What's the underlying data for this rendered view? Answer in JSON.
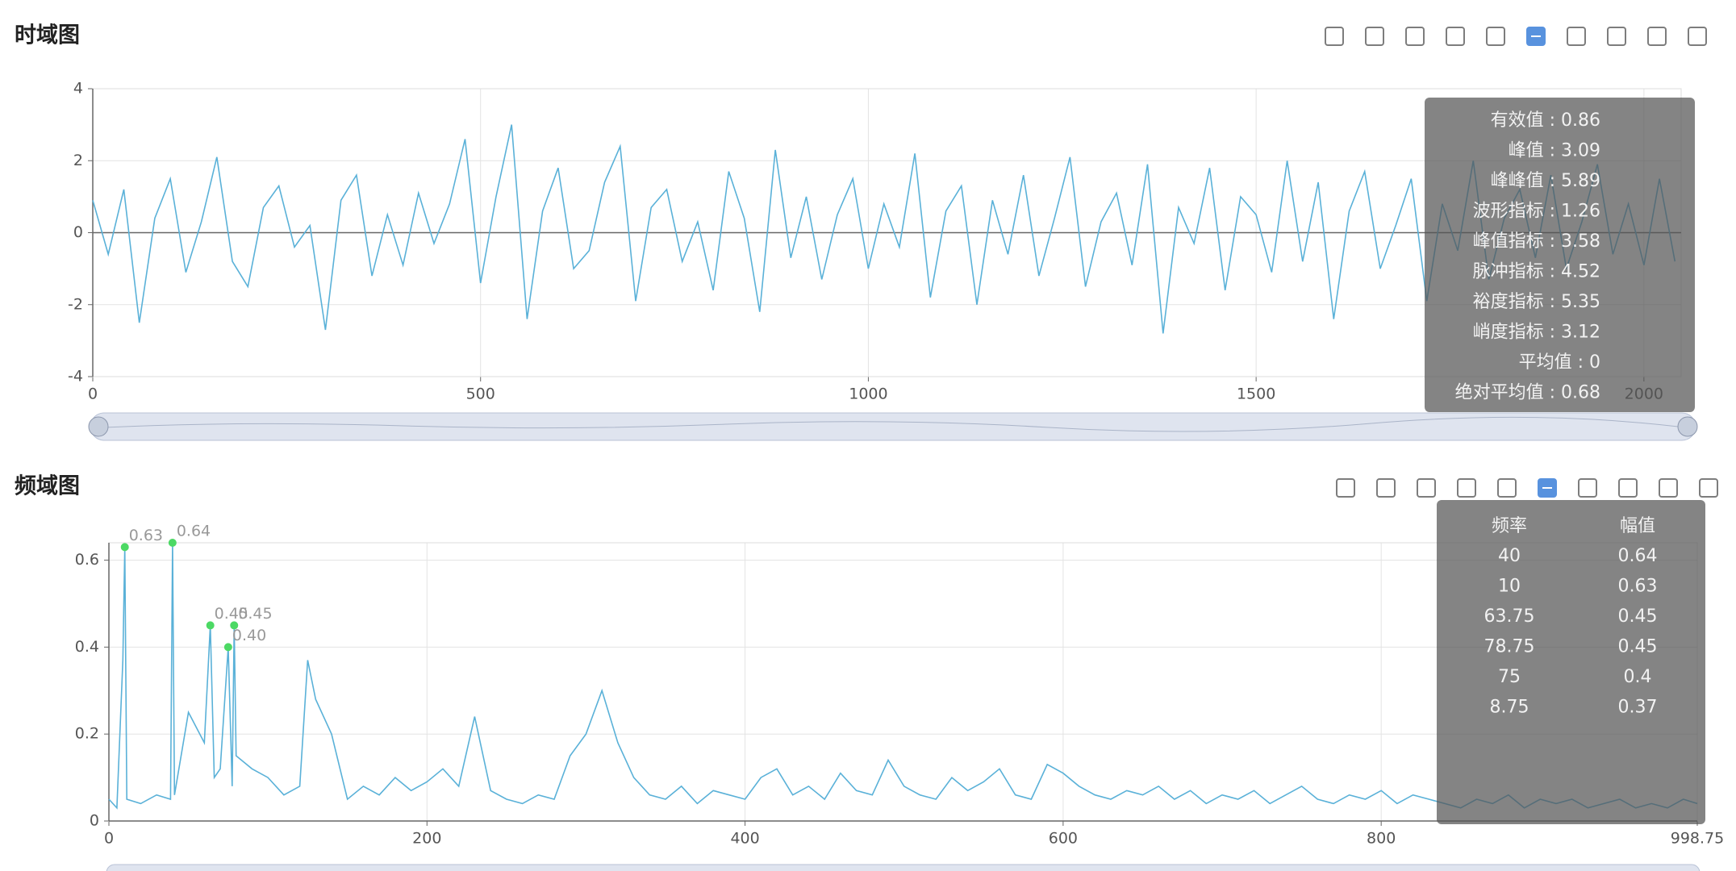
{
  "chart_data": [
    {
      "type": "line",
      "title": "时域图",
      "x": [
        0,
        20,
        40,
        60,
        80,
        100,
        120,
        140,
        160,
        180,
        200,
        220,
        240,
        260,
        280,
        300,
        320,
        340,
        360,
        380,
        400,
        420,
        440,
        460,
        480,
        500,
        520,
        540,
        560,
        580,
        600,
        620,
        640,
        660,
        680,
        700,
        720,
        740,
        760,
        780,
        800,
        820,
        840,
        860,
        880,
        900,
        920,
        940,
        960,
        980,
        1000,
        1020,
        1040,
        1060,
        1080,
        1100,
        1120,
        1140,
        1160,
        1180,
        1200,
        1220,
        1240,
        1260,
        1280,
        1300,
        1320,
        1340,
        1360,
        1380,
        1400,
        1420,
        1440,
        1460,
        1480,
        1500,
        1520,
        1540,
        1560,
        1580,
        1600,
        1620,
        1640,
        1660,
        1680,
        1700,
        1720,
        1740,
        1760,
        1780,
        1800,
        1820,
        1840,
        1860,
        1880,
        1900,
        1920,
        1940,
        1960,
        1980,
        2000,
        2020,
        2040
      ],
      "values": [
        0.9,
        -0.6,
        1.2,
        -2.5,
        0.4,
        1.5,
        -1.1,
        0.3,
        2.1,
        -0.8,
        -1.5,
        0.7,
        1.3,
        -0.4,
        0.2,
        -2.7,
        0.9,
        1.6,
        -1.2,
        0.5,
        -0.9,
        1.1,
        -0.3,
        0.8,
        2.6,
        -1.4,
        1.0,
        3.0,
        -2.4,
        0.6,
        1.8,
        -1.0,
        -0.5,
        1.4,
        2.4,
        -1.9,
        0.7,
        1.2,
        -0.8,
        0.3,
        -1.6,
        1.7,
        0.4,
        -2.2,
        2.3,
        -0.7,
        1.0,
        -1.3,
        0.5,
        1.5,
        -1.0,
        0.8,
        -0.4,
        2.2,
        -1.8,
        0.6,
        1.3,
        -2.0,
        0.9,
        -0.6,
        1.6,
        -1.2,
        0.4,
        2.1,
        -1.5,
        0.3,
        1.1,
        -0.9,
        1.9,
        -2.8,
        0.7,
        -0.3,
        1.8,
        -1.6,
        1.0,
        0.5,
        -1.1,
        2.0,
        -0.8,
        1.4,
        -2.4,
        0.6,
        1.7,
        -1.0,
        0.2,
        1.5,
        -1.9,
        0.8,
        -0.5,
        2.0,
        -1.3,
        0.4,
        1.2,
        -0.7,
        1.6,
        -1.0,
        0.3,
        1.9,
        -0.6,
        0.8,
        -0.9,
        1.5,
        -0.8
      ],
      "color": "#5ab1d8",
      "xlim": [
        0,
        2048
      ],
      "xticks": [
        0,
        500,
        1000,
        1500,
        2000
      ],
      "ylim": [
        -4,
        4
      ],
      "yticks": [
        -4,
        -2,
        0,
        2,
        4
      ],
      "grid": true,
      "stats": [
        "有效值 : 0.86",
        "峰值 : 3.09",
        "峰峰值 : 5.89",
        "波形指标 : 1.26",
        "峰值指标 : 3.58",
        "脉冲指标 : 4.52",
        "裕度指标 : 5.35",
        "峭度指标 : 3.12",
        "平均值 : 0",
        "绝对平均值 : 0.68"
      ]
    },
    {
      "type": "line",
      "title": "频域图",
      "x": [
        0,
        5,
        8.75,
        10,
        11.25,
        20,
        30,
        38.75,
        40,
        41.25,
        50,
        60,
        63.75,
        66.25,
        70,
        75,
        77.5,
        78.75,
        80,
        90,
        100,
        110,
        120,
        125,
        130,
        140,
        150,
        160,
        170,
        180,
        190,
        200,
        210,
        220,
        230,
        240,
        250,
        260,
        270,
        280,
        290,
        300,
        310,
        320,
        330,
        340,
        350,
        360,
        370,
        380,
        390,
        400,
        410,
        420,
        430,
        440,
        450,
        460,
        470,
        480,
        490,
        500,
        510,
        520,
        530,
        540,
        550,
        560,
        570,
        580,
        590,
        600,
        610,
        620,
        630,
        640,
        650,
        660,
        670,
        680,
        690,
        700,
        710,
        720,
        730,
        740,
        750,
        760,
        770,
        780,
        790,
        800,
        810,
        820,
        830,
        840,
        850,
        860,
        870,
        880,
        890,
        900,
        910,
        920,
        930,
        940,
        950,
        960,
        970,
        980,
        990,
        998.75
      ],
      "values": [
        0.05,
        0.03,
        0.37,
        0.63,
        0.05,
        0.04,
        0.06,
        0.05,
        0.64,
        0.06,
        0.25,
        0.18,
        0.45,
        0.1,
        0.12,
        0.4,
        0.08,
        0.45,
        0.15,
        0.12,
        0.1,
        0.06,
        0.08,
        0.37,
        0.28,
        0.2,
        0.05,
        0.08,
        0.06,
        0.1,
        0.07,
        0.09,
        0.12,
        0.08,
        0.24,
        0.07,
        0.05,
        0.04,
        0.06,
        0.05,
        0.15,
        0.2,
        0.3,
        0.18,
        0.1,
        0.06,
        0.05,
        0.08,
        0.04,
        0.07,
        0.06,
        0.05,
        0.1,
        0.12,
        0.06,
        0.08,
        0.05,
        0.11,
        0.07,
        0.06,
        0.14,
        0.08,
        0.06,
        0.05,
        0.1,
        0.07,
        0.09,
        0.12,
        0.06,
        0.05,
        0.13,
        0.11,
        0.08,
        0.06,
        0.05,
        0.07,
        0.06,
        0.08,
        0.05,
        0.07,
        0.04,
        0.06,
        0.05,
        0.07,
        0.04,
        0.06,
        0.08,
        0.05,
        0.04,
        0.06,
        0.05,
        0.07,
        0.04,
        0.06,
        0.05,
        0.04,
        0.03,
        0.05,
        0.04,
        0.06,
        0.03,
        0.05,
        0.04,
        0.05,
        0.03,
        0.04,
        0.05,
        0.03,
        0.04,
        0.03,
        0.05,
        0.04
      ],
      "color": "#5ab1d8",
      "xlim": [
        0,
        998.75
      ],
      "xticks": [
        0,
        200,
        400,
        600,
        800,
        998.75
      ],
      "ylim": [
        0,
        0.64
      ],
      "yticks": [
        0,
        0.2,
        0.4,
        0.6
      ],
      "grid": true,
      "markers": {
        "x": [
          10,
          40,
          63.75,
          78.75,
          75
        ],
        "values": [
          0.63,
          0.64,
          0.45,
          0.45,
          0.4
        ],
        "value_labels": [
          "0.63",
          "0.64",
          "0.45",
          "0.45",
          "0.40"
        ],
        "color": "#4cd964"
      },
      "peak_table": {
        "columns": [
          "频率",
          "幅值"
        ],
        "rows": [
          [
            40,
            0.64
          ],
          [
            10,
            0.63
          ],
          [
            63.75,
            0.45
          ],
          [
            78.75,
            0.45
          ],
          [
            75,
            0.4
          ],
          [
            8.75,
            0.37
          ]
        ]
      }
    }
  ]
}
